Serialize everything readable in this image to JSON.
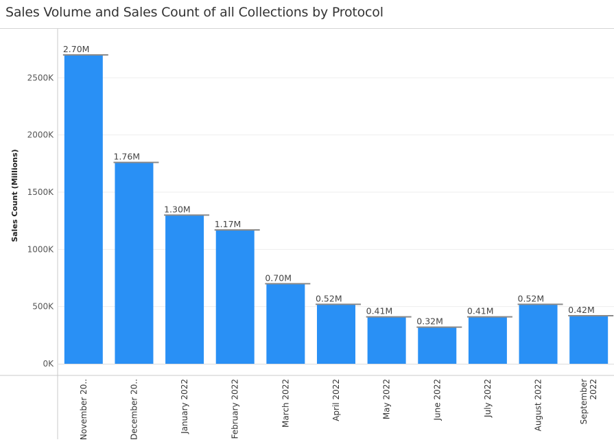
{
  "chart_data": {
    "type": "bar",
    "title": "Sales Volume and Sales Count of all Collections by Protocol",
    "xlabel": "",
    "ylabel": "Sales Count (Millions)",
    "ylim": [
      0,
      2700000
    ],
    "yticks": [
      0,
      500000,
      1000000,
      1500000,
      2000000,
      2500000
    ],
    "ytick_labels": [
      "0K",
      "500K",
      "1000K",
      "1500K",
      "2000K",
      "2500K"
    ],
    "grid": true,
    "categories": [
      [
        "November 20.."
      ],
      [
        "December 20.."
      ],
      [
        "January 2022"
      ],
      [
        "February 2022"
      ],
      [
        "March 2022"
      ],
      [
        "April 2022"
      ],
      [
        "May 2022"
      ],
      [
        "June 2022"
      ],
      [
        "July 2022"
      ],
      [
        "August 2022"
      ],
      [
        "September",
        "2022"
      ]
    ],
    "values": [
      2700000,
      1760000,
      1300000,
      1170000,
      700000,
      520000,
      410000,
      320000,
      410000,
      520000,
      420000
    ],
    "reference_values": [
      2700000,
      1760000,
      1300000,
      1170000,
      700000,
      520000,
      410000,
      320000,
      410000,
      520000,
      420000
    ],
    "data_labels": [
      "2.70M",
      "1.76M",
      "1.30M",
      "1.17M",
      "0.70M",
      "0.52M",
      "0.41M",
      "0.32M",
      "0.41M",
      "0.52M",
      "0.42M"
    ],
    "colors": {
      "bar": "#2990f5",
      "reference_line": "#8a8a8a",
      "grid": "#eeeeee",
      "axis": "#c8c8c8"
    }
  }
}
